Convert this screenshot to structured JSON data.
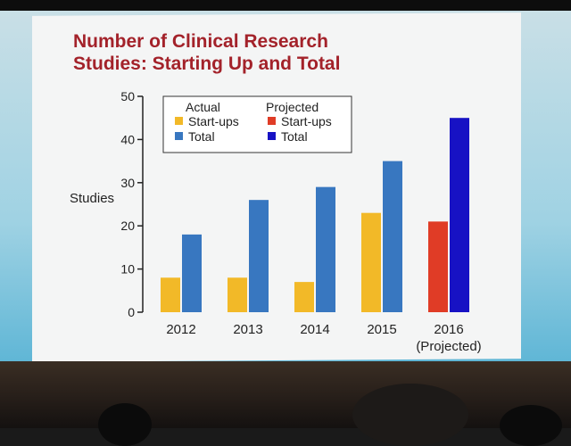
{
  "slide": {
    "title_line1": "Number of Clinical Research",
    "title_line2": "Studies: Starting Up and Total"
  },
  "colors": {
    "actual_startups": "#f2b928",
    "actual_total": "#3877c0",
    "projected_startups": "#e03c26",
    "projected_total": "#1712c4",
    "title": "#a3222a"
  },
  "chart_data": {
    "type": "bar",
    "title": "Number of Clinical Research Studies: Starting Up and Total",
    "xlabel": "",
    "ylabel": "Studies",
    "ylim": [
      0,
      50
    ],
    "yticks": [
      0,
      10,
      20,
      30,
      40,
      50
    ],
    "categories": [
      "2012",
      "2013",
      "2014",
      "2015",
      "2016"
    ],
    "category_sublabels": [
      "",
      "",
      "",
      "",
      "(Projected)"
    ],
    "series": [
      {
        "name": "Start-ups",
        "group": "Actual",
        "values": [
          8,
          8,
          7,
          23,
          null
        ]
      },
      {
        "name": "Total",
        "group": "Actual",
        "values": [
          18,
          26,
          29,
          35,
          null
        ]
      },
      {
        "name": "Start-ups",
        "group": "Projected",
        "values": [
          null,
          null,
          null,
          null,
          21
        ]
      },
      {
        "name": "Total",
        "group": "Projected",
        "values": [
          null,
          null,
          null,
          null,
          45
        ]
      }
    ],
    "legend": {
      "position": "top-left",
      "group_actual": "Actual",
      "group_projected": "Projected",
      "startups": "Start-ups",
      "total": "Total"
    }
  }
}
